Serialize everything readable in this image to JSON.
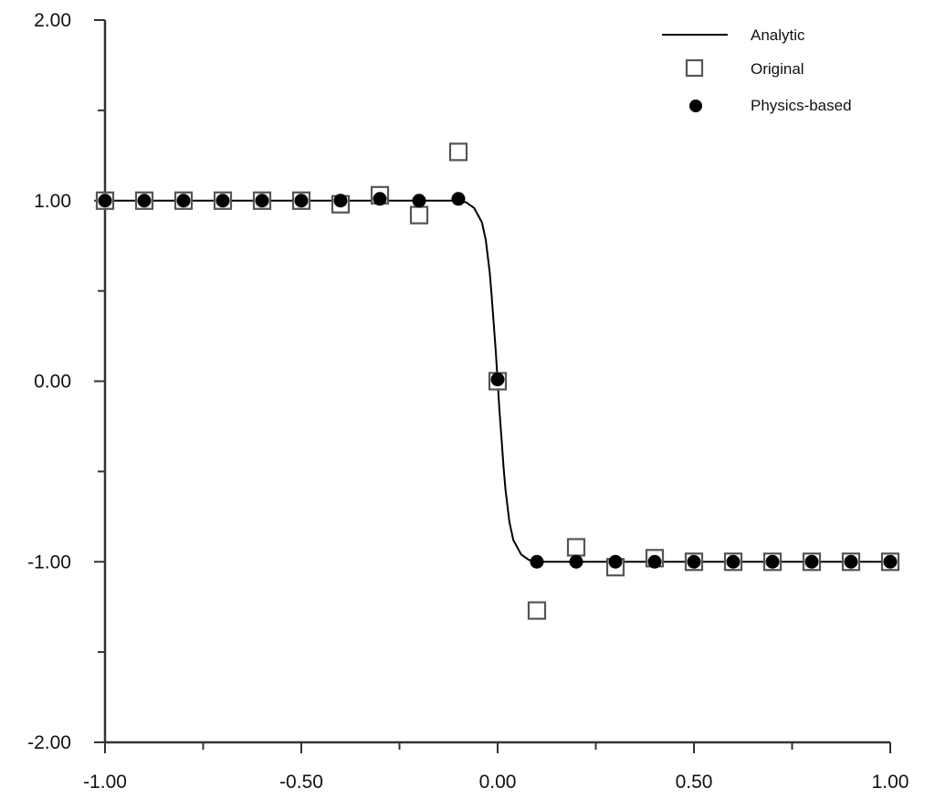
{
  "chart_data": {
    "type": "scatter",
    "title": "",
    "xlabel": "",
    "ylabel": "",
    "xlim": [
      -1.0,
      1.0
    ],
    "ylim": [
      -2.0,
      2.0
    ],
    "x_major_ticks": [
      -1.0,
      -0.5,
      0.0,
      0.5,
      1.0
    ],
    "x_tick_labels": [
      "-1.00",
      "-0.50",
      "0.00",
      "0.50",
      "1.00"
    ],
    "x_minor_ticks": [
      -0.75,
      -0.25,
      0.25,
      0.75
    ],
    "y_major_ticks": [
      -2.0,
      -1.0,
      0.0,
      1.0,
      2.0
    ],
    "y_tick_labels": [
      "-2.00",
      "-1.00",
      "0.00",
      "1.00",
      "2.00"
    ],
    "y_minor_ticks": [
      -1.5,
      -0.5,
      0.5,
      1.5
    ],
    "grid": false,
    "legend_position": "top-right",
    "series": [
      {
        "name": "Analytic",
        "kind": "line",
        "color": "#000000",
        "x": [
          -1.0,
          -0.2,
          -0.1,
          -0.08,
          -0.06,
          -0.04,
          -0.03,
          -0.02,
          -0.015,
          -0.01,
          -0.005,
          0.0,
          0.005,
          0.01,
          0.015,
          0.02,
          0.03,
          0.04,
          0.06,
          0.08,
          0.1,
          0.2,
          1.0
        ],
        "y": [
          1.0,
          1.0,
          1.0,
          0.99,
          0.96,
          0.88,
          0.78,
          0.6,
          0.47,
          0.32,
          0.17,
          0.0,
          -0.17,
          -0.32,
          -0.47,
          -0.6,
          -0.78,
          -0.88,
          -0.96,
          -0.99,
          -1.0,
          -1.0,
          -1.0
        ]
      },
      {
        "name": "Original",
        "kind": "square",
        "color": "#555555",
        "x": [
          -1.0,
          -0.9,
          -0.8,
          -0.7,
          -0.6,
          -0.5,
          -0.4,
          -0.3,
          -0.2,
          -0.1,
          0.0,
          0.1,
          0.2,
          0.3,
          0.4,
          0.5,
          0.6,
          0.7,
          0.8,
          0.9,
          1.0
        ],
        "y": [
          1.0,
          1.0,
          1.0,
          1.0,
          1.0,
          1.0,
          0.98,
          1.03,
          0.92,
          1.27,
          0.0,
          -1.27,
          -0.92,
          -1.03,
          -0.98,
          -1.0,
          -1.0,
          -1.0,
          -1.0,
          -1.0,
          -1.0
        ]
      },
      {
        "name": "Physics-based",
        "kind": "dot",
        "color": "#000000",
        "x": [
          -1.0,
          -0.9,
          -0.8,
          -0.7,
          -0.6,
          -0.5,
          -0.4,
          -0.3,
          -0.2,
          -0.1,
          0.0,
          0.1,
          0.2,
          0.3,
          0.4,
          0.5,
          0.6,
          0.7,
          0.8,
          0.9,
          1.0
        ],
        "y": [
          1.0,
          1.0,
          1.0,
          1.0,
          1.0,
          1.0,
          1.0,
          1.01,
          1.0,
          1.01,
          0.01,
          -1.0,
          -1.0,
          -1.0,
          -1.0,
          -1.0,
          -1.0,
          -1.0,
          -1.0,
          -1.0,
          -1.0
        ]
      }
    ]
  }
}
